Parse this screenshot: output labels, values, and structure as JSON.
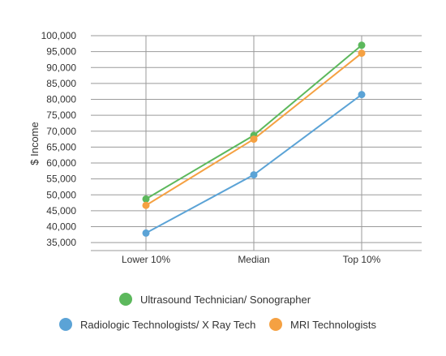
{
  "chart_data": {
    "type": "line",
    "categories": [
      "Lower 10%",
      "Median",
      "Top 10%"
    ],
    "ylabel": "$ Income",
    "ylim": [
      32500,
      100000
    ],
    "yticks": [
      "100,000",
      "95,000",
      "90,000",
      "85,000",
      "80,000",
      "75,000",
      "70,000",
      "65,000",
      "60,000",
      "55,000",
      "50,000",
      "45,000",
      "40,000",
      "35,000"
    ],
    "ytick_values": [
      100000,
      95000,
      90000,
      85000,
      80000,
      75000,
      70000,
      65000,
      60000,
      55000,
      50000,
      45000,
      40000,
      35000
    ],
    "grid": true,
    "legend_position": "bottom",
    "series": [
      {
        "name": "Ultrasound Technician/ Sonographer",
        "color": "#5cb85c",
        "values": [
          48700,
          68700,
          97000
        ]
      },
      {
        "name": "MRI Technologists",
        "color": "#f5a142",
        "values": [
          46700,
          67500,
          94500
        ]
      },
      {
        "name": "Radiologic Technologists/ X Ray Tech",
        "color": "#5ba3d6",
        "values": [
          38000,
          56300,
          81500
        ]
      }
    ],
    "legend": [
      {
        "name": "Ultrasound Technician/ Sonographer",
        "color": "#5cb85c"
      },
      {
        "name": "Radiologic Technologists/ X Ray Tech",
        "color": "#5ba3d6"
      },
      {
        "name": "MRI Technologists",
        "color": "#f5a142"
      }
    ]
  }
}
